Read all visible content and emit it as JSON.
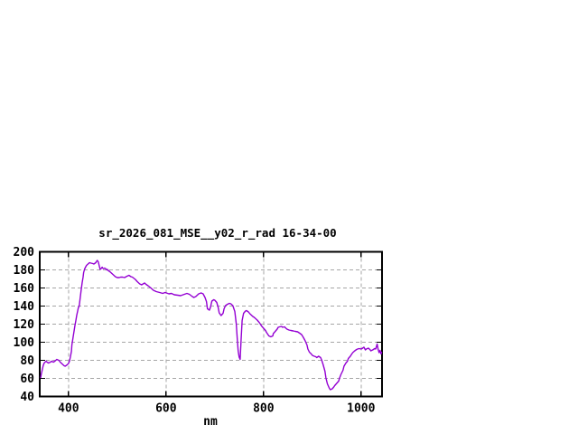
{
  "window": {
    "background": "#ffffff"
  },
  "chart_data": {
    "type": "line",
    "title": "sr_2026_081_MSE__y02_r_rad 16-34-00",
    "xlabel": "nm",
    "ylabel": "",
    "xlim": [
      341,
      1043
    ],
    "ylim": [
      40,
      200
    ],
    "x_ticks": [
      400,
      600,
      800,
      1000
    ],
    "y_ticks": [
      40,
      60,
      80,
      100,
      120,
      140,
      160,
      180,
      200
    ],
    "grid": "dashed",
    "legend_position": "none",
    "line_color": "#9400d3",
    "border_color": "#000000",
    "grid_color": "#a6a6a6",
    "points": [
      [
        343,
        61
      ],
      [
        344,
        64
      ],
      [
        346,
        69
      ],
      [
        348,
        74
      ],
      [
        350,
        77
      ],
      [
        352,
        78
      ],
      [
        354,
        79
      ],
      [
        356,
        78
      ],
      [
        359,
        77
      ],
      [
        363,
        78
      ],
      [
        365,
        79
      ],
      [
        369,
        78
      ],
      [
        372,
        79
      ],
      [
        376,
        81
      ],
      [
        380,
        80
      ],
      [
        383,
        78
      ],
      [
        387,
        76
      ],
      [
        391,
        74
      ],
      [
        393,
        73.5
      ],
      [
        396,
        74.5
      ],
      [
        400,
        76.5
      ],
      [
        402,
        79
      ],
      [
        404,
        84
      ],
      [
        406,
        90
      ],
      [
        407,
        97
      ],
      [
        409,
        104
      ],
      [
        411,
        111
      ],
      [
        413,
        118
      ],
      [
        415,
        124
      ],
      [
        417,
        130
      ],
      [
        419,
        135
      ],
      [
        420,
        138
      ],
      [
        422,
        140
      ],
      [
        424,
        149
      ],
      [
        426,
        158
      ],
      [
        428,
        166
      ],
      [
        430,
        172
      ],
      [
        431,
        177
      ],
      [
        433,
        181
      ],
      [
        435,
        183
      ],
      [
        437,
        185
      ],
      [
        439,
        186
      ],
      [
        441,
        187
      ],
      [
        443,
        188
      ],
      [
        446,
        187.5
      ],
      [
        450,
        187
      ],
      [
        452,
        186.5
      ],
      [
        456,
        188
      ],
      [
        457,
        189
      ],
      [
        459,
        190.5
      ],
      [
        461,
        189
      ],
      [
        463,
        184.5
      ],
      [
        465,
        180.5
      ],
      [
        467,
        181.5
      ],
      [
        469,
        183
      ],
      [
        470,
        182
      ],
      [
        472,
        181.5
      ],
      [
        474,
        182
      ],
      [
        476,
        181.5
      ],
      [
        478,
        180
      ],
      [
        480,
        180.5
      ],
      [
        481,
        179.5
      ],
      [
        485,
        178
      ],
      [
        489,
        176
      ],
      [
        493,
        174
      ],
      [
        496,
        172.5
      ],
      [
        500,
        171.5
      ],
      [
        504,
        171.5
      ],
      [
        507,
        172
      ],
      [
        511,
        172
      ],
      [
        515,
        171.5
      ],
      [
        520,
        173
      ],
      [
        524,
        174
      ],
      [
        528,
        172.5
      ],
      [
        531,
        172
      ],
      [
        537,
        169.5
      ],
      [
        541,
        167
      ],
      [
        546,
        164.5
      ],
      [
        550,
        163.5
      ],
      [
        556,
        165.5
      ],
      [
        559,
        164
      ],
      [
        563,
        162.5
      ],
      [
        569,
        160
      ],
      [
        574,
        157.5
      ],
      [
        580,
        156
      ],
      [
        587,
        155
      ],
      [
        593,
        154
      ],
      [
        598,
        155
      ],
      [
        606,
        153.5
      ],
      [
        611,
        154
      ],
      [
        617,
        152.5
      ],
      [
        624,
        152
      ],
      [
        630,
        151.5
      ],
      [
        635,
        152.5
      ],
      [
        643,
        154
      ],
      [
        648,
        153
      ],
      [
        654,
        150.5
      ],
      [
        657,
        149.5
      ],
      [
        661,
        150.5
      ],
      [
        667,
        153.5
      ],
      [
        672,
        154.5
      ],
      [
        676,
        153.5
      ],
      [
        680,
        149.5
      ],
      [
        683,
        145
      ],
      [
        685,
        137
      ],
      [
        689,
        135.5
      ],
      [
        691,
        138.5
      ],
      [
        694,
        145.5
      ],
      [
        698,
        147
      ],
      [
        700,
        146.5
      ],
      [
        704,
        144
      ],
      [
        707,
        138.5
      ],
      [
        709,
        132.5
      ],
      [
        713,
        129.5
      ],
      [
        717,
        132
      ],
      [
        719,
        137
      ],
      [
        722,
        140.5
      ],
      [
        726,
        142
      ],
      [
        730,
        143
      ],
      [
        733,
        142.5
      ],
      [
        737,
        140.5
      ],
      [
        741,
        134
      ],
      [
        744,
        120.5
      ],
      [
        746,
        104
      ],
      [
        748,
        90.5
      ],
      [
        750,
        83.5
      ],
      [
        752,
        81
      ],
      [
        754,
        103.5
      ],
      [
        756,
        124
      ],
      [
        759,
        132
      ],
      [
        763,
        134.5
      ],
      [
        765,
        135
      ],
      [
        769,
        133.5
      ],
      [
        772,
        131.5
      ],
      [
        774,
        130.5
      ],
      [
        778,
        128.5
      ],
      [
        781,
        127.5
      ],
      [
        783,
        126.5
      ],
      [
        787,
        124.5
      ],
      [
        791,
        122
      ],
      [
        793,
        120.5
      ],
      [
        796,
        118
      ],
      [
        800,
        115.5
      ],
      [
        804,
        113
      ],
      [
        806,
        111
      ],
      [
        809,
        108.5
      ],
      [
        811,
        107
      ],
      [
        815,
        106
      ],
      [
        819,
        107
      ],
      [
        820,
        109.5
      ],
      [
        824,
        112
      ],
      [
        828,
        114.5
      ],
      [
        830,
        116.5
      ],
      [
        833,
        117
      ],
      [
        837,
        117.5
      ],
      [
        839,
        116.5
      ],
      [
        843,
        117
      ],
      [
        846,
        115.5
      ],
      [
        848,
        114.5
      ],
      [
        852,
        113.5
      ],
      [
        856,
        113
      ],
      [
        861,
        112.5
      ],
      [
        865,
        112
      ],
      [
        870,
        111.5
      ],
      [
        874,
        110
      ],
      [
        878,
        108.5
      ],
      [
        881,
        106
      ],
      [
        885,
        102
      ],
      [
        889,
        97
      ],
      [
        891,
        92.5
      ],
      [
        894,
        89
      ],
      [
        898,
        87
      ],
      [
        900,
        85.5
      ],
      [
        904,
        84.5
      ],
      [
        907,
        84
      ],
      [
        909,
        83
      ],
      [
        913,
        84.5
      ],
      [
        917,
        83
      ],
      [
        919,
        80.5
      ],
      [
        922,
        75.5
      ],
      [
        926,
        68
      ],
      [
        928,
        60.5
      ],
      [
        931,
        54
      ],
      [
        935,
        49
      ],
      [
        937,
        47.5
      ],
      [
        941,
        48.5
      ],
      [
        944,
        50.5
      ],
      [
        946,
        52
      ],
      [
        950,
        54.5
      ],
      [
        954,
        57
      ],
      [
        956,
        60.5
      ],
      [
        959,
        64.5
      ],
      [
        963,
        69
      ],
      [
        965,
        73.5
      ],
      [
        969,
        77
      ],
      [
        972,
        79
      ],
      [
        974,
        82
      ],
      [
        978,
        84.5
      ],
      [
        981,
        87
      ],
      [
        983,
        88.5
      ],
      [
        987,
        90.5
      ],
      [
        991,
        92
      ],
      [
        993,
        92.5
      ],
      [
        996,
        93
      ],
      [
        1000,
        92.5
      ],
      [
        1002,
        93
      ],
      [
        1006,
        94.5
      ],
      [
        1009,
        91.5
      ],
      [
        1011,
        92.5
      ],
      [
        1015,
        93.5
      ],
      [
        1019,
        91.5
      ],
      [
        1020,
        90.5
      ],
      [
        1024,
        91.5
      ],
      [
        1028,
        93
      ],
      [
        1030,
        92.5
      ],
      [
        1033,
        98
      ],
      [
        1035,
        92
      ],
      [
        1037,
        88.5
      ],
      [
        1039,
        91
      ],
      [
        1041,
        87
      ],
      [
        1042,
        89
      ]
    ]
  }
}
